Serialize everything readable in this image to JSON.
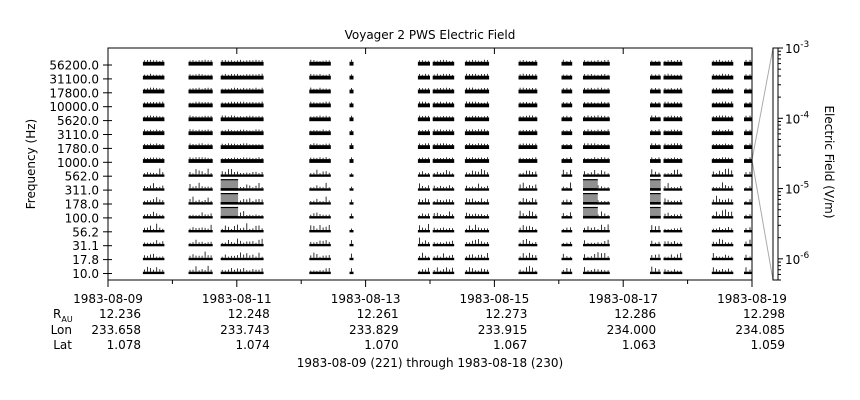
{
  "chart_data": {
    "type": "line",
    "title": "Voyager 2 PWS Electric Field",
    "ylabel": "Frequency (Hz)",
    "xlabel": "1983-08-09 (221) through 1983-08-18 (230)",
    "colorbar": {
      "label": "Electric Field (V/m)",
      "scale": "log",
      "range": [
        5e-07,
        0.001
      ],
      "ticks": [
        {
          "value": 1e-06,
          "mantissa": "10",
          "exp": "-6"
        },
        {
          "value": 1e-05,
          "mantissa": "10",
          "exp": "-5"
        },
        {
          "value": 0.0001,
          "mantissa": "10",
          "exp": "-4"
        },
        {
          "value": 0.001,
          "mantissa": "10",
          "exp": "-3"
        }
      ]
    },
    "channels": [
      "10.0",
      "17.8",
      "31.1",
      "56.2",
      "100.0",
      "178.0",
      "311.0",
      "562.0",
      "1000.0",
      "1780.0",
      "3110.0",
      "5620.0",
      "10000.0",
      "17800.0",
      "31100.0",
      "56200.0"
    ],
    "ytick_labels": [
      "10.0",
      "17.8",
      "31.1",
      "56.2",
      "100.0",
      "178.0",
      "311.0",
      "562.0",
      "1000.0",
      "1780.0",
      "3110.0",
      "5620.0",
      "10000.0",
      "17800.0",
      "31100.0",
      "56200.0"
    ],
    "x_range": [
      "1983-08-09",
      "1983-08-19"
    ],
    "x_ticks": [
      {
        "date": "1983-08-09",
        "label": "1983-08-09",
        "r": "12.236",
        "lon": "233.658",
        "lat": "1.078"
      },
      {
        "date": "1983-08-11",
        "label": "1983-08-11",
        "r": "12.248",
        "lon": "233.743",
        "lat": "1.074"
      },
      {
        "date": "1983-08-13",
        "label": "1983-08-13",
        "r": "12.261",
        "lon": "233.829",
        "lat": "1.070"
      },
      {
        "date": "1983-08-15",
        "label": "1983-08-15",
        "r": "12.273",
        "lon": "233.915",
        "lat": "1.067"
      },
      {
        "date": "1983-08-17",
        "label": "1983-08-17",
        "r": "12.286",
        "lon": "234.000",
        "lat": "1.063"
      },
      {
        "date": "1983-08-19",
        "label": "1983-08-19",
        "r": "12.298",
        "lon": "234.085",
        "lat": "1.059"
      }
    ],
    "ephemeris_labels": {
      "r_main": "R",
      "r_sub": "AU",
      "lon": "Lon",
      "lat": "Lat"
    },
    "data_segments": [
      {
        "start": "1983-08-09T13:00",
        "end": "1983-08-09T21:00"
      },
      {
        "start": "1983-08-10T06:00",
        "end": "1983-08-10T15:00"
      },
      {
        "start": "1983-08-10T18:00",
        "end": "1983-08-11T10:00"
      },
      {
        "start": "1983-08-12T03:00",
        "end": "1983-08-12T11:00"
      },
      {
        "start": "1983-08-12T18:00",
        "end": "1983-08-12T19:30"
      },
      {
        "start": "1983-08-13T19:30",
        "end": "1983-08-14T00:00"
      },
      {
        "start": "1983-08-14T01:00",
        "end": "1983-08-14T09:00"
      },
      {
        "start": "1983-08-14T13:00",
        "end": "1983-08-14T22:00"
      },
      {
        "start": "1983-08-15T09:00",
        "end": "1983-08-15T16:00"
      },
      {
        "start": "1983-08-16T01:00",
        "end": "1983-08-16T05:00"
      },
      {
        "start": "1983-08-16T09:00",
        "end": "1983-08-16T19:00"
      },
      {
        "start": "1983-08-17T10:00",
        "end": "1983-08-17T14:00"
      },
      {
        "start": "1983-08-17T15:00",
        "end": "1983-08-17T22:00"
      },
      {
        "start": "1983-08-18T09:00",
        "end": "1983-08-18T17:00"
      },
      {
        "start": "1983-08-18T21:00",
        "end": "1983-08-19T00:00"
      }
    ],
    "enhanced_events": [
      {
        "start": "1983-08-10T18:00",
        "end": "1983-08-11T00:30",
        "channels": [
          "100.0",
          "178.0",
          "311.0"
        ]
      },
      {
        "start": "1983-08-16T09:00",
        "end": "1983-08-16T14:30",
        "channels": [
          "100.0",
          "178.0",
          "311.0"
        ]
      },
      {
        "start": "1983-08-17T10:00",
        "end": "1983-08-17T14:00",
        "channels": [
          "100.0",
          "178.0",
          "311.0"
        ]
      }
    ]
  }
}
